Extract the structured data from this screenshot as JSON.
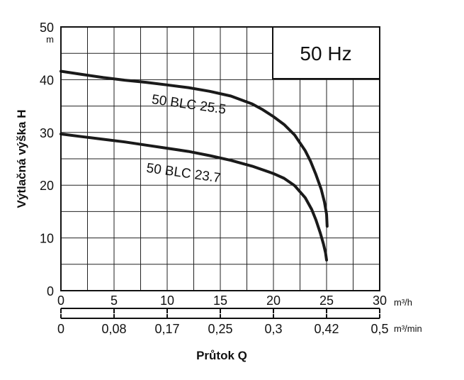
{
  "chart_data": {
    "type": "line",
    "ylabel": "Výtlačná výška H",
    "ylabel_unit": "m",
    "xlabel": "Průtok Q",
    "x_unit_primary": "m³/h",
    "x_unit_secondary": "m³/min",
    "frequency_label": "50 Hz",
    "xlim": [
      0,
      30
    ],
    "ylim": [
      0,
      50
    ],
    "x_ticks": [
      0,
      5,
      10,
      15,
      20,
      25,
      30
    ],
    "x_tick_labels": [
      "0",
      "5",
      "10",
      "15",
      "20",
      "25",
      "30"
    ],
    "x_secondary_tick_labels": [
      "0",
      "0,08",
      "0,17",
      "0,25",
      "0,3",
      "0,42",
      "0,5"
    ],
    "y_ticks": [
      0,
      10,
      20,
      30,
      40,
      50
    ],
    "y_tick_labels": [
      "0",
      "10",
      "20",
      "30",
      "40",
      "50"
    ],
    "grid": true,
    "grid_minor_x": 2.5,
    "grid_minor_y": 5,
    "series": [
      {
        "name": "50 BLC 25.5",
        "x": [
          0,
          2,
          4,
          6,
          8,
          10,
          12,
          14,
          16,
          18,
          19,
          20,
          21,
          22,
          23,
          23.5,
          24,
          24.5,
          24.8,
          25,
          25.05
        ],
        "y": [
          41.6,
          41.0,
          40.4,
          39.9,
          39.5,
          39.0,
          38.5,
          37.8,
          36.9,
          35.4,
          34.3,
          33.0,
          31.5,
          29.5,
          26.5,
          24.5,
          22.0,
          19.2,
          16.8,
          14.5,
          12.2
        ],
        "label_x": 8.5,
        "label_y": 35.5
      },
      {
        "name": "50 BLC 23.7",
        "x": [
          0,
          2,
          4,
          6,
          8,
          10,
          12,
          14,
          16,
          18,
          20,
          21,
          22,
          23,
          23.6,
          24,
          24.4,
          24.7,
          24.9,
          25
        ],
        "y": [
          29.7,
          29.2,
          28.7,
          28.2,
          27.6,
          27.0,
          26.4,
          25.6,
          24.7,
          23.6,
          22.2,
          21.3,
          19.9,
          17.6,
          15.4,
          13.4,
          11.0,
          8.9,
          7.2,
          5.8
        ],
        "label_x": 8.0,
        "label_y": 22.5
      }
    ]
  }
}
